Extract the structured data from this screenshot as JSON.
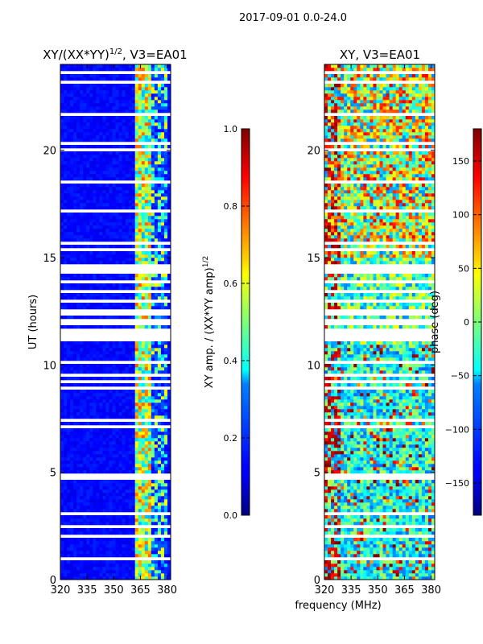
{
  "suptitle": "2017-09-01 0.0-24.0",
  "xlabel_shared": "frequency (MHz)",
  "chart_data": [
    {
      "type": "heatmap",
      "id": "amp",
      "title": "XY/(XX*YY)",
      "title_exponent": "1/2",
      "title_suffix": ", V3=EA01",
      "ylabel": "UT (hours)",
      "xlim": [
        320,
        382
      ],
      "ylim": [
        0,
        24
      ],
      "xticks": [
        320,
        335,
        350,
        365,
        380
      ],
      "yticks": [
        0,
        5,
        10,
        15,
        20
      ],
      "colorbar": {
        "label": "XY amp. / (XX*YY amp)",
        "label_exponent": "1/2",
        "range": [
          0.0,
          1.0
        ],
        "ticks": [
          "0.0",
          "0.2",
          "0.4",
          "0.6",
          "0.8",
          "1.0"
        ],
        "colormap": "jet"
      },
      "description_values": {
        "background_level": 0.1,
        "band_362_371_level": 0.55,
        "band_371_381_level": 0.45
      }
    },
    {
      "type": "heatmap",
      "id": "phase",
      "title": "XY, V3=EA01",
      "ylabel": "",
      "xlim": [
        320,
        382
      ],
      "ylim": [
        0,
        24
      ],
      "xticks": [
        320,
        335,
        350,
        365,
        380
      ],
      "yticks": [
        0,
        5,
        10,
        15,
        20
      ],
      "colorbar": {
        "label": "phase (deg)",
        "range": [
          -180,
          180
        ],
        "ticks": [
          "−150",
          "−100",
          "−50",
          "0",
          "50",
          "100",
          "150"
        ],
        "colormap": "jet"
      }
    }
  ],
  "colors": {
    "missing_rows": "#ffffff",
    "frame": "#000000"
  }
}
